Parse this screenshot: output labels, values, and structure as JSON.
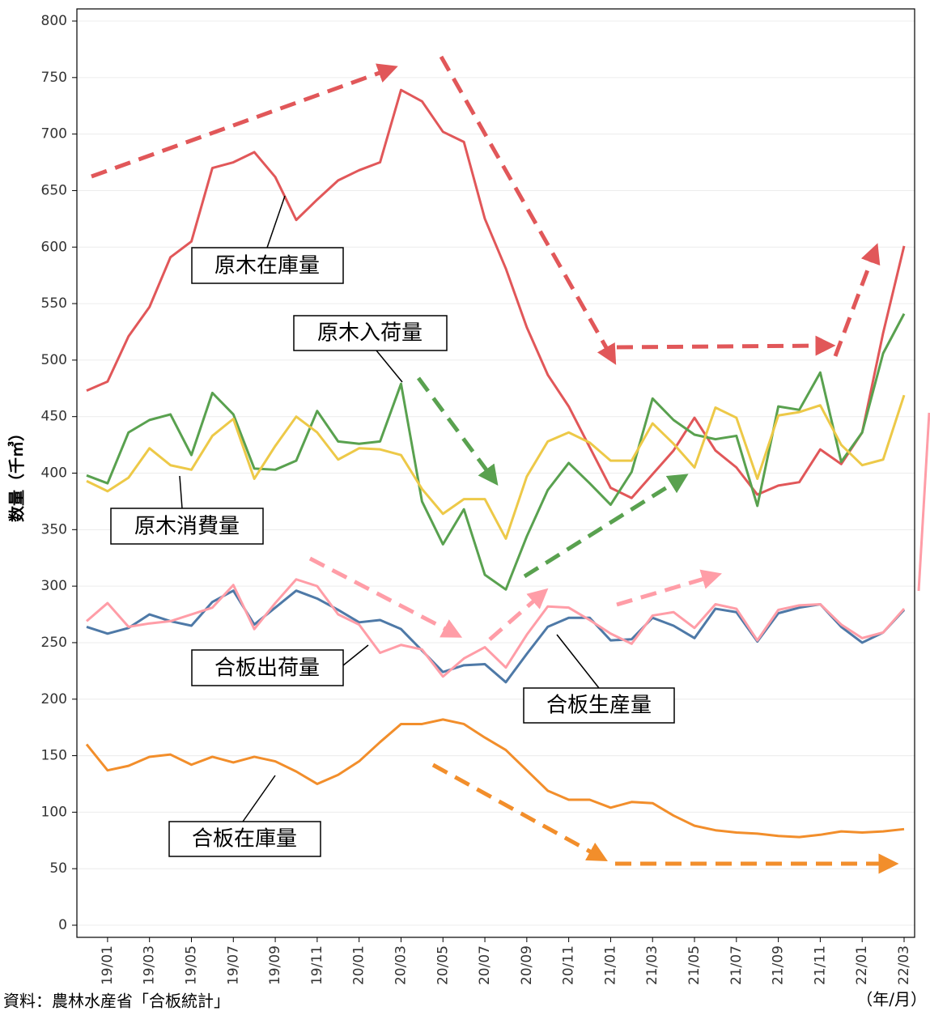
{
  "chart_data": {
    "type": "line",
    "y_label": "数量（千㎥）",
    "x_unit": "（年/月）",
    "source": "資料：農林水産省「合板統計」",
    "categories": [
      null,
      "19/01",
      null,
      "19/03",
      null,
      "19/05",
      null,
      "19/07",
      null,
      "19/09",
      null,
      "19/11",
      null,
      "20/01",
      null,
      "20/03",
      null,
      "20/05",
      null,
      "20/07",
      null,
      "20/09",
      null,
      "20/11",
      null,
      "21/01",
      null,
      "21/03",
      null,
      "21/05",
      null,
      "21/07",
      null,
      "21/09",
      null,
      "21/11",
      null,
      "22/01",
      null,
      "22/03"
    ],
    "ylim": [
      0,
      800
    ],
    "yticks": [
      0,
      50,
      100,
      150,
      200,
      250,
      300,
      350,
      400,
      450,
      500,
      550,
      600,
      650,
      700,
      750,
      800
    ],
    "grid": true,
    "series": [
      {
        "name": "原木在庫量",
        "color": "#e15759",
        "values": [
          473,
          481,
          521,
          547,
          591,
          605,
          670,
          675,
          684,
          662,
          624,
          642,
          659,
          668,
          675,
          739,
          729,
          702,
          693,
          625,
          581,
          529,
          487,
          459,
          423,
          387,
          378,
          399,
          420,
          449,
          420,
          405,
          381,
          389,
          392,
          421,
          408,
          436,
          524,
          601
        ]
      },
      {
        "name": "原木入荷量",
        "color": "#59a14f",
        "values": [
          398,
          391,
          436,
          447,
          452,
          416,
          471,
          452,
          404,
          403,
          411,
          455,
          428,
          426,
          428,
          479,
          375,
          337,
          368,
          310,
          297,
          344,
          385,
          409,
          391,
          372,
          401,
          466,
          447,
          434,
          430,
          433,
          371,
          459,
          456,
          489,
          410,
          436,
          506,
          541
        ]
      },
      {
        "name": "原木消費量",
        "color": "#edc948",
        "values": [
          393,
          384,
          396,
          422,
          407,
          403,
          433,
          448,
          395,
          424,
          450,
          436,
          412,
          422,
          421,
          416,
          386,
          364,
          377,
          377,
          342,
          397,
          428,
          436,
          427,
          411,
          411,
          444,
          426,
          405,
          458,
          449,
          395,
          451,
          454,
          460,
          425,
          407,
          412,
          469
        ]
      },
      {
        "name": "合板出荷量",
        "color": "#4e79a7",
        "values": [
          264,
          258,
          263,
          275,
          269,
          265,
          286,
          296,
          266,
          281,
          296,
          289,
          279,
          268,
          270,
          262,
          243,
          224,
          230,
          231,
          215,
          240,
          264,
          272,
          272,
          252,
          253,
          272,
          265,
          254,
          280,
          277,
          251,
          276,
          281,
          284,
          264,
          250,
          259,
          279
        ]
      },
      {
        "name": "合板生産量",
        "color": "#ff9da7",
        "values": [
          269,
          285,
          264,
          267,
          269,
          275,
          281,
          301,
          262,
          285,
          306,
          300,
          275,
          266,
          241,
          248,
          244,
          220,
          236,
          246,
          228,
          257,
          282,
          281,
          270,
          258,
          249,
          274,
          277,
          263,
          284,
          280,
          252,
          279,
          283,
          284,
          266,
          254,
          259,
          280
        ]
      },
      {
        "name": "合板在庫量",
        "color": "#f28e2b",
        "values": [
          160,
          137,
          141,
          149,
          151,
          142,
          149,
          144,
          149,
          145,
          136,
          125,
          133,
          145,
          162,
          178,
          178,
          182,
          178,
          166,
          155,
          137,
          119,
          111,
          111,
          104,
          109,
          108,
          97,
          88,
          84,
          82,
          81,
          79,
          78,
          80,
          83,
          82,
          83,
          85
        ]
      }
    ]
  }
}
